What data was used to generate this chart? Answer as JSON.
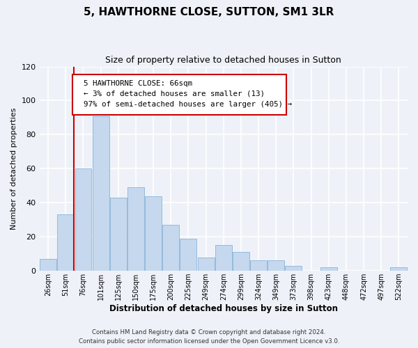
{
  "title": "5, HAWTHORNE CLOSE, SUTTON, SM1 3LR",
  "subtitle": "Size of property relative to detached houses in Sutton",
  "xlabel": "Distribution of detached houses by size in Sutton",
  "ylabel": "Number of detached properties",
  "bar_labels": [
    "26sqm",
    "51sqm",
    "76sqm",
    "101sqm",
    "125sqm",
    "150sqm",
    "175sqm",
    "200sqm",
    "225sqm",
    "249sqm",
    "274sqm",
    "299sqm",
    "324sqm",
    "349sqm",
    "373sqm",
    "398sqm",
    "423sqm",
    "448sqm",
    "472sqm",
    "497sqm",
    "522sqm"
  ],
  "bar_values": [
    7,
    33,
    60,
    91,
    43,
    49,
    44,
    27,
    19,
    8,
    15,
    11,
    6,
    6,
    3,
    0,
    2,
    0,
    0,
    0,
    2
  ],
  "bar_color": "#c5d8ee",
  "bar_edgecolor": "#8ab4d8",
  "ylim": [
    0,
    120
  ],
  "yticks": [
    0,
    20,
    40,
    60,
    80,
    100,
    120
  ],
  "property_line_color": "#cc0000",
  "property_line_xindex": 1.45,
  "annotation_line1": "5 HAWTHORNE CLOSE: 66sqm",
  "annotation_line2": "← 3% of detached houses are smaller (13)",
  "annotation_line3": "97% of semi-detached houses are larger (405) →",
  "annotation_box_color": "#cc0000",
  "footer_line1": "Contains HM Land Registry data © Crown copyright and database right 2024.",
  "footer_line2": "Contains public sector information licensed under the Open Government Licence v3.0.",
  "background_color": "#eef2f8",
  "plot_bg_color": "#eef2f8",
  "grid_color": "#ffffff"
}
